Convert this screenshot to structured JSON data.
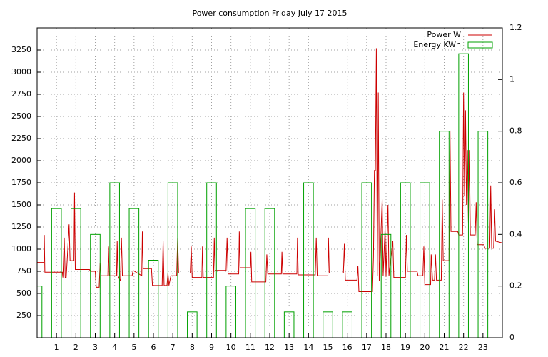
{
  "chart_data": {
    "type": "line",
    "title": "Power consumption Friday July 17 2015",
    "xlim": [
      0,
      24
    ],
    "xticks": [
      1,
      2,
      3,
      4,
      5,
      6,
      7,
      8,
      9,
      10,
      11,
      12,
      13,
      14,
      15,
      16,
      17,
      18,
      19,
      20,
      21,
      22,
      23
    ],
    "ylim": [
      0,
      3500
    ],
    "yticks": [
      250,
      500,
      750,
      1000,
      1250,
      1500,
      1750,
      2000,
      2250,
      2500,
      2750,
      3000,
      3250
    ],
    "y2lim": [
      0,
      1.2
    ],
    "y2ticks": [
      0,
      0.2,
      0.4,
      0.6,
      0.8,
      1,
      1.2
    ],
    "grid": true,
    "legend": "top-right",
    "series": [
      {
        "name": "Power W",
        "color": "#cc0000",
        "type": "line",
        "x": [
          0,
          0.35,
          0.37,
          0.4,
          1.3,
          1.33,
          1.4,
          1.45,
          1.5,
          1.55,
          1.65,
          1.7,
          1.9,
          1.93,
          1.97,
          2.7,
          2.75,
          3,
          3.05,
          3.2,
          3.25,
          3.3,
          3.65,
          3.68,
          3.72,
          4.1,
          4.13,
          4.17,
          4.3,
          4.35,
          4.4,
          4.9,
          4.95,
          5.4,
          5.43,
          5.47,
          5.9,
          5.95,
          6.45,
          6.5,
          6.55,
          6.7,
          6.75,
          6.8,
          6.9,
          7.2,
          7.25,
          7.3,
          7.9,
          7.95,
          8,
          8.5,
          8.53,
          8.57,
          9.1,
          9.14,
          9.18,
          9.75,
          9.8,
          9.85,
          10.4,
          10.43,
          10.47,
          11,
          11.03,
          11.07,
          11.8,
          11.85,
          11.9,
          12.6,
          12.63,
          12.67,
          13.4,
          13.43,
          13.47,
          14.35,
          14.4,
          14.45,
          15,
          15.03,
          15.07,
          15.8,
          15.85,
          15.9,
          16.5,
          16.55,
          16.6,
          17.3,
          17.35,
          17.4,
          17.45,
          17.5,
          17.55,
          17.6,
          17.65,
          17.8,
          17.85,
          17.95,
          18,
          18.1,
          18.15,
          18.35,
          18.4,
          19,
          19.05,
          19.1,
          19.6,
          19.65,
          19.9,
          19.95,
          20,
          20.3,
          20.33,
          20.4,
          20.5,
          20.55,
          20.6,
          20.85,
          20.9,
          20.95,
          21.25,
          21.3,
          21.35,
          21.7,
          21.75,
          21.95,
          22,
          22.05,
          22.1,
          22.15,
          22.2,
          22.25,
          22.3,
          22.35,
          22.6,
          22.65,
          22.7,
          23.05,
          23.1,
          23.35,
          23.4,
          23.45,
          23.55,
          23.6,
          23.65,
          24
        ],
        "values": [
          850,
          850,
          1160,
          740,
          740,
          680,
          1130,
          680,
          680,
          870,
          1280,
          870,
          870,
          1640,
          770,
          770,
          750,
          750,
          570,
          570,
          840,
          700,
          700,
          1030,
          700,
          700,
          1090,
          700,
          640,
          1130,
          700,
          700,
          760,
          700,
          1200,
          780,
          780,
          590,
          590,
          1090,
          590,
          590,
          730,
          590,
          700,
          700,
          1130,
          730,
          730,
          1030,
          680,
          680,
          1030,
          680,
          680,
          1130,
          760,
          760,
          1130,
          720,
          720,
          1200,
          790,
          790,
          970,
          630,
          630,
          940,
          720,
          720,
          970,
          720,
          720,
          1130,
          710,
          710,
          1130,
          700,
          700,
          1130,
          730,
          730,
          1060,
          650,
          650,
          810,
          520,
          520,
          910,
          1890,
          1890,
          3270,
          700,
          2770,
          640,
          1560,
          700,
          1240,
          690,
          1500,
          700,
          1090,
          680,
          680,
          1160,
          750,
          750,
          700,
          700,
          1030,
          600,
          600,
          940,
          650,
          650,
          940,
          650,
          650,
          1560,
          870,
          870,
          2340,
          1200,
          1200,
          1160,
          1160,
          2770,
          1600,
          2570,
          1500,
          2120,
          1300,
          2120,
          1160,
          1160,
          1530,
          1050,
          1050,
          1010,
          1010,
          1720,
          1010,
          1010,
          1450,
          1090,
          1070
        ]
      },
      {
        "name": "Energy KWh",
        "color": "#00a000",
        "type": "bar",
        "axis": "y2",
        "x": [
          0,
          1,
          2,
          3,
          4,
          5,
          6,
          7,
          8,
          9,
          10,
          11,
          12,
          13,
          14,
          15,
          16,
          17,
          18,
          19,
          20,
          21,
          22,
          23
        ],
        "values": [
          0.2,
          0.5,
          0.5,
          0.4,
          0.6,
          0.5,
          0.3,
          0.6,
          0.1,
          0.6,
          0.2,
          0.5,
          0.5,
          0.1,
          0.6,
          0.1,
          0.1,
          0.6,
          0.4,
          0.6,
          0.6,
          0.8,
          1.1,
          0.8
        ]
      }
    ]
  }
}
